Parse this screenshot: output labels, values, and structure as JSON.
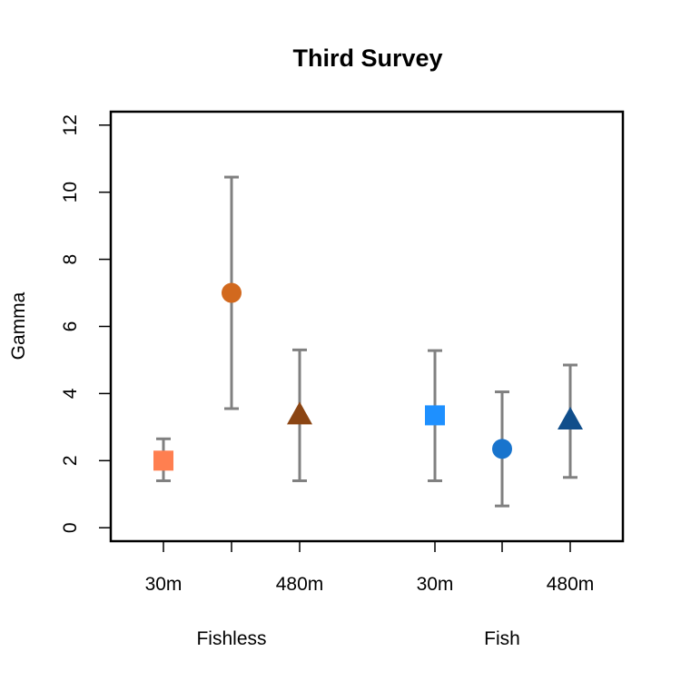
{
  "chart_data": {
    "type": "scatter",
    "title": "Third Survey",
    "ylabel": "Gamma",
    "ylim": [
      -0.4,
      12.4
    ],
    "yticks": [
      "0",
      "2",
      "4",
      "6",
      "8",
      "10",
      "12"
    ],
    "groups": [
      "Fishless",
      "Fish"
    ],
    "points": [
      {
        "group": "Fishless",
        "label": "30m",
        "y": 2.0,
        "lower": 1.4,
        "upper": 2.65,
        "shape": "square",
        "color": "#ff7f50"
      },
      {
        "group": "Fishless",
        "label": "",
        "y": 7.0,
        "lower": 3.55,
        "upper": 10.45,
        "shape": "circle",
        "color": "#d2691e"
      },
      {
        "group": "Fishless",
        "label": "480m",
        "y": 3.35,
        "lower": 1.4,
        "upper": 5.3,
        "shape": "triangle",
        "color": "#8b4513"
      },
      {
        "group": "Fish",
        "label": "30m",
        "y": 3.35,
        "lower": 1.4,
        "upper": 5.28,
        "shape": "square",
        "color": "#1e90ff"
      },
      {
        "group": "Fish",
        "label": "",
        "y": 2.35,
        "lower": 0.65,
        "upper": 4.05,
        "shape": "circle",
        "color": "#1874cd"
      },
      {
        "group": "Fish",
        "label": "480m",
        "y": 3.2,
        "lower": 1.5,
        "upper": 4.85,
        "shape": "triangle",
        "color": "#104e8b"
      }
    ],
    "errorbar_color": "#808080",
    "grid": false,
    "legend": "none"
  }
}
